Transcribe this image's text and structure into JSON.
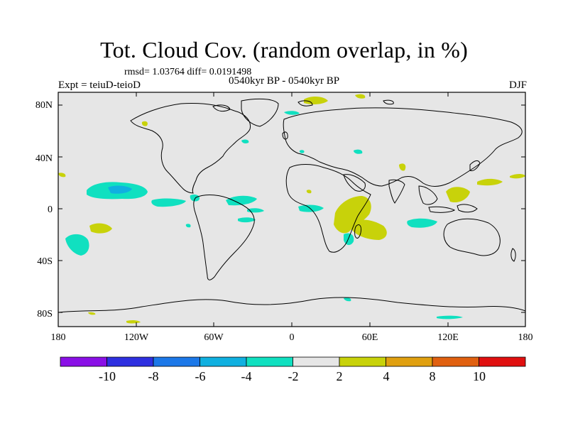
{
  "header": {
    "title": "Tot. Cloud Cov. (random overlap, in %)",
    "stats": "rmsd= 1.03764 diff= 0.0191498",
    "experiment": "Expt = teiuD-teioD",
    "period": "0540kyr BP - 0540kyr BP",
    "season": "DJF"
  },
  "map": {
    "lat_labels": [
      "80N",
      "40N",
      "0",
      "40S",
      "80S"
    ],
    "lon_labels": [
      "180",
      "120W",
      "60W",
      "0",
      "60E",
      "120E",
      "180"
    ],
    "background_color": "#e6e6e6"
  },
  "colorbar": {
    "labels": [
      "-10",
      "-8",
      "-6",
      "-4",
      "-2",
      "2",
      "4",
      "8",
      "10"
    ],
    "colors": [
      "#8a10e6",
      "#2e30e0",
      "#1c78e8",
      "#10b0e0",
      "#10e0c0",
      "#e6e6e6",
      "#c8d20a",
      "#e0a010",
      "#e06010",
      "#e01010"
    ]
  },
  "legend_colors": {
    "cyan": "#10e0c0",
    "yellow": "#c8d20a",
    "blue_cyan": "#10b0e0"
  }
}
